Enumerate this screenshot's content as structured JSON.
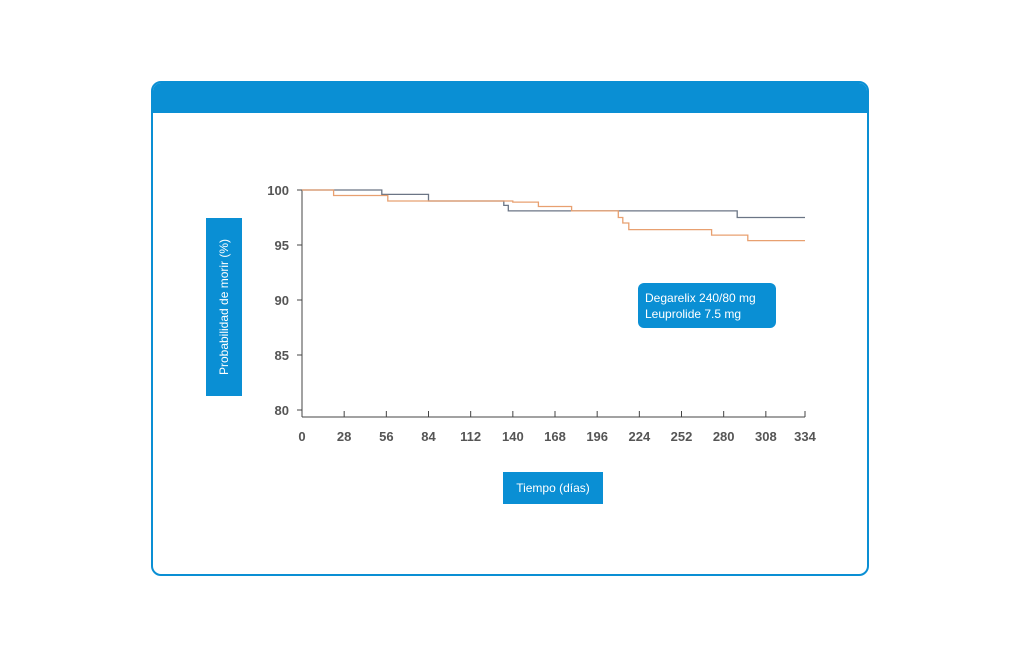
{
  "chart_data": {
    "type": "line",
    "title": "",
    "xlabel": "Tiempo (días)",
    "ylabel": "Probabilidad de morir (%)",
    "xlim": [
      0,
      334
    ],
    "ylim": [
      80,
      100
    ],
    "x_ticks": [
      "0",
      "28",
      "56",
      "84",
      "112",
      "140",
      "168",
      "196",
      "224",
      "252",
      "280",
      "308",
      "334"
    ],
    "y_ticks": [
      "100",
      "95",
      "90",
      "85",
      "80"
    ],
    "series": [
      {
        "name": "Degarelix 240/80 mg",
        "color": "#6b7585",
        "step": true,
        "points": [
          [
            0,
            100
          ],
          [
            53,
            100
          ],
          [
            53,
            99.6
          ],
          [
            84,
            99.6
          ],
          [
            84,
            99
          ],
          [
            134,
            99
          ],
          [
            134,
            98.6
          ],
          [
            137,
            98.6
          ],
          [
            137,
            98.1
          ],
          [
            289,
            98.1
          ],
          [
            289,
            97.5
          ],
          [
            334,
            97.5
          ]
        ]
      },
      {
        "name": "Leuprolide 7.5 mg",
        "color": "#e8a070",
        "step": true,
        "points": [
          [
            0,
            100
          ],
          [
            21,
            100
          ],
          [
            21,
            99.5
          ],
          [
            57,
            99.5
          ],
          [
            57,
            99
          ],
          [
            140,
            99
          ],
          [
            140,
            98.9
          ],
          [
            157,
            98.9
          ],
          [
            157,
            98.5
          ],
          [
            179,
            98.5
          ],
          [
            179,
            98.1
          ],
          [
            210,
            98.1
          ],
          [
            210,
            97.5
          ],
          [
            213,
            97.5
          ],
          [
            213,
            97
          ],
          [
            217,
            97
          ],
          [
            217,
            96.4
          ],
          [
            272,
            96.4
          ],
          [
            272,
            95.9
          ],
          [
            296,
            95.9
          ],
          [
            296,
            95.4
          ],
          [
            334,
            95.4
          ]
        ]
      }
    ],
    "legend": {
      "position": "right",
      "entries": [
        "Degarelix 240/80 mg",
        "Leuprolide 7.5 mg"
      ]
    }
  }
}
